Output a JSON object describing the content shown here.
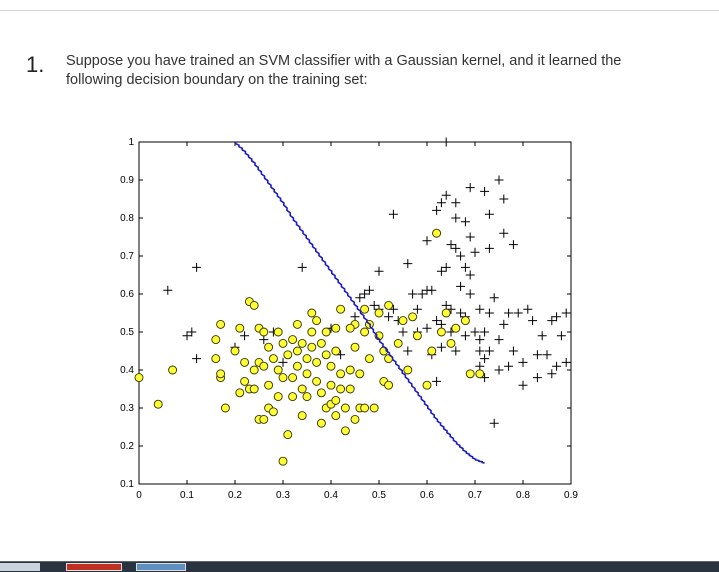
{
  "question": {
    "number": "1.",
    "line1": "Suppose you have trained an SVM classifier with a Gaussian kernel, and it learned the",
    "line2": "following decision boundary on the training set:"
  },
  "colors": {
    "boundary": "#1a1ac8",
    "positive_marker": "#000000",
    "negative_fill": "#ffff33",
    "negative_stroke": "#333300"
  },
  "chart_data": {
    "type": "scatter",
    "xlim": [
      0,
      0.9
    ],
    "ylim": [
      0.1,
      1
    ],
    "xticks": [
      "0",
      "0.1",
      "0.2",
      "0.3",
      "0.4",
      "0.5",
      "0.6",
      "0.7",
      "0.8",
      "0.9"
    ],
    "yticks": [
      "0.1",
      "0.2",
      "0.3",
      "0.4",
      "0.5",
      "0.6",
      "0.7",
      "0.8",
      "0.9",
      "1"
    ],
    "grid": false,
    "series": [
      {
        "marker": "plus",
        "points": [
          [
            0.06,
            0.61
          ],
          [
            0.1,
            0.49
          ],
          [
            0.11,
            0.5
          ],
          [
            0.12,
            0.43
          ],
          [
            0.12,
            0.67
          ],
          [
            0.2,
            0.46
          ],
          [
            0.22,
            0.49
          ],
          [
            0.26,
            0.48
          ],
          [
            0.28,
            0.5
          ],
          [
            0.3,
            0.42
          ],
          [
            0.34,
            0.67
          ],
          [
            0.4,
            0.51
          ],
          [
            0.42,
            0.44
          ],
          [
            0.44,
            0.4
          ],
          [
            0.45,
            0.54
          ],
          [
            0.46,
            0.59
          ],
          [
            0.47,
            0.6
          ],
          [
            0.48,
            0.61
          ],
          [
            0.49,
            0.57
          ],
          [
            0.5,
            0.56
          ],
          [
            0.5,
            0.66
          ],
          [
            0.52,
            0.54
          ],
          [
            0.53,
            0.81
          ],
          [
            0.53,
            0.56
          ],
          [
            0.54,
            0.53
          ],
          [
            0.55,
            0.5
          ],
          [
            0.56,
            0.45
          ],
          [
            0.56,
            0.68
          ],
          [
            0.57,
            0.6
          ],
          [
            0.58,
            0.56
          ],
          [
            0.58,
            0.5
          ],
          [
            0.59,
            0.6
          ],
          [
            0.6,
            0.61
          ],
          [
            0.6,
            0.51
          ],
          [
            0.6,
            0.74
          ],
          [
            0.61,
            0.44
          ],
          [
            0.61,
            0.61
          ],
          [
            0.62,
            0.53
          ],
          [
            0.62,
            0.76
          ],
          [
            0.62,
            0.82
          ],
          [
            0.63,
            0.84
          ],
          [
            0.63,
            0.66
          ],
          [
            0.63,
            0.46
          ],
          [
            0.63,
            0.52
          ],
          [
            0.64,
            0.86
          ],
          [
            0.64,
            0.57
          ],
          [
            0.64,
            0.67
          ],
          [
            0.64,
            1.0
          ],
          [
            0.65,
            0.73
          ],
          [
            0.65,
            0.5
          ],
          [
            0.65,
            0.56
          ],
          [
            0.66,
            0.84
          ],
          [
            0.66,
            0.8
          ],
          [
            0.66,
            0.72
          ],
          [
            0.66,
            0.45
          ],
          [
            0.67,
            0.7
          ],
          [
            0.67,
            0.62
          ],
          [
            0.67,
            0.55
          ],
          [
            0.68,
            0.79
          ],
          [
            0.68,
            0.67
          ],
          [
            0.68,
            0.54
          ],
          [
            0.68,
            0.49
          ],
          [
            0.69,
            0.88
          ],
          [
            0.69,
            0.75
          ],
          [
            0.69,
            0.65
          ],
          [
            0.69,
            0.6
          ],
          [
            0.7,
            0.71
          ],
          [
            0.7,
            0.5
          ],
          [
            0.71,
            0.56
          ],
          [
            0.71,
            0.45
          ],
          [
            0.71,
            0.41
          ],
          [
            0.72,
            0.87
          ],
          [
            0.72,
            0.5
          ],
          [
            0.72,
            0.43
          ],
          [
            0.73,
            0.81
          ],
          [
            0.73,
            0.72
          ],
          [
            0.73,
            0.45
          ],
          [
            0.73,
            0.55
          ],
          [
            0.74,
            0.26
          ],
          [
            0.74,
            0.59
          ],
          [
            0.75,
            0.9
          ],
          [
            0.75,
            0.48
          ],
          [
            0.75,
            0.4
          ],
          [
            0.76,
            0.85
          ],
          [
            0.76,
            0.76
          ],
          [
            0.76,
            0.52
          ],
          [
            0.77,
            0.41
          ],
          [
            0.77,
            0.55
          ],
          [
            0.78,
            0.73
          ],
          [
            0.78,
            0.45
          ],
          [
            0.79,
            0.55
          ],
          [
            0.8,
            0.36
          ],
          [
            0.8,
            0.42
          ],
          [
            0.81,
            0.56
          ],
          [
            0.82,
            0.53
          ],
          [
            0.83,
            0.44
          ],
          [
            0.83,
            0.38
          ],
          [
            0.84,
            0.49
          ],
          [
            0.85,
            0.44
          ],
          [
            0.86,
            0.53
          ],
          [
            0.86,
            0.39
          ],
          [
            0.87,
            0.54
          ],
          [
            0.87,
            0.41
          ],
          [
            0.88,
            0.49
          ],
          [
            0.89,
            0.42
          ],
          [
            0.89,
            0.55
          ],
          [
            0.72,
            0.38
          ],
          [
            0.71,
            0.48
          ],
          [
            0.62,
            0.37
          ]
        ]
      },
      {
        "marker": "circle",
        "points": [
          [
            0,
            0.38
          ],
          [
            0.04,
            0.31
          ],
          [
            0.07,
            0.4
          ],
          [
            0.16,
            0.48
          ],
          [
            0.16,
            0.43
          ],
          [
            0.17,
            0.52
          ],
          [
            0.17,
            0.38
          ],
          [
            0.17,
            0.39
          ],
          [
            0.18,
            0.3
          ],
          [
            0.2,
            0.45
          ],
          [
            0.21,
            0.51
          ],
          [
            0.21,
            0.34
          ],
          [
            0.22,
            0.42
          ],
          [
            0.22,
            0.37
          ],
          [
            0.23,
            0.58
          ],
          [
            0.23,
            0.35
          ],
          [
            0.24,
            0.57
          ],
          [
            0.24,
            0.4
          ],
          [
            0.24,
            0.35
          ],
          [
            0.25,
            0.51
          ],
          [
            0.25,
            0.42
          ],
          [
            0.25,
            0.27
          ],
          [
            0.26,
            0.5
          ],
          [
            0.26,
            0.41
          ],
          [
            0.26,
            0.27
          ],
          [
            0.27,
            0.46
          ],
          [
            0.27,
            0.36
          ],
          [
            0.27,
            0.3
          ],
          [
            0.28,
            0.43
          ],
          [
            0.28,
            0.29
          ],
          [
            0.29,
            0.5
          ],
          [
            0.29,
            0.4
          ],
          [
            0.29,
            0.33
          ],
          [
            0.3,
            0.47
          ],
          [
            0.3,
            0.38
          ],
          [
            0.3,
            0.16
          ],
          [
            0.31,
            0.44
          ],
          [
            0.31,
            0.23
          ],
          [
            0.32,
            0.48
          ],
          [
            0.32,
            0.38
          ],
          [
            0.32,
            0.33
          ],
          [
            0.33,
            0.52
          ],
          [
            0.33,
            0.45
          ],
          [
            0.33,
            0.41
          ],
          [
            0.34,
            0.47
          ],
          [
            0.34,
            0.35
          ],
          [
            0.34,
            0.28
          ],
          [
            0.35,
            0.43
          ],
          [
            0.35,
            0.39
          ],
          [
            0.35,
            0.33
          ],
          [
            0.36,
            0.55
          ],
          [
            0.36,
            0.5
          ],
          [
            0.36,
            0.46
          ],
          [
            0.37,
            0.42
          ],
          [
            0.37,
            0.37
          ],
          [
            0.37,
            0.53
          ],
          [
            0.38,
            0.47
          ],
          [
            0.38,
            0.34
          ],
          [
            0.38,
            0.26
          ],
          [
            0.39,
            0.44
          ],
          [
            0.39,
            0.3
          ],
          [
            0.39,
            0.5
          ],
          [
            0.4,
            0.41
          ],
          [
            0.4,
            0.36
          ],
          [
            0.4,
            0.31
          ],
          [
            0.41,
            0.45
          ],
          [
            0.41,
            0.51
          ],
          [
            0.41,
            0.28
          ],
          [
            0.42,
            0.56
          ],
          [
            0.42,
            0.35
          ],
          [
            0.42,
            0.39
          ],
          [
            0.43,
            0.3
          ],
          [
            0.43,
            0.24
          ],
          [
            0.44,
            0.4
          ],
          [
            0.44,
            0.35
          ],
          [
            0.45,
            0.46
          ],
          [
            0.45,
            0.52
          ],
          [
            0.45,
            0.27
          ],
          [
            0.46,
            0.39
          ],
          [
            0.46,
            0.3
          ],
          [
            0.47,
            0.56
          ],
          [
            0.47,
            0.5
          ],
          [
            0.47,
            0.3
          ],
          [
            0.48,
            0.52
          ],
          [
            0.48,
            0.43
          ],
          [
            0.49,
            0.3
          ],
          [
            0.5,
            0.55
          ],
          [
            0.5,
            0.49
          ],
          [
            0.51,
            0.45
          ],
          [
            0.51,
            0.37
          ],
          [
            0.52,
            0.57
          ],
          [
            0.52,
            0.43
          ],
          [
            0.52,
            0.36
          ],
          [
            0.54,
            0.47
          ],
          [
            0.55,
            0.53
          ],
          [
            0.56,
            0.4
          ],
          [
            0.57,
            0.54
          ],
          [
            0.58,
            0.49
          ],
          [
            0.6,
            0.36
          ],
          [
            0.61,
            0.45
          ],
          [
            0.63,
            0.5
          ],
          [
            0.64,
            0.55
          ],
          [
            0.65,
            0.47
          ],
          [
            0.66,
            0.51
          ],
          [
            0.68,
            0.53
          ],
          [
            0.62,
            0.76
          ],
          [
            0.69,
            0.39
          ],
          [
            0.71,
            0.39
          ],
          [
            0.41,
            0.32
          ],
          [
            0.44,
            0.51
          ]
        ]
      }
    ],
    "boundary": [
      [
        0.2,
        1.0
      ],
      [
        0.22,
        0.975
      ],
      [
        0.24,
        0.945
      ],
      [
        0.26,
        0.91
      ],
      [
        0.28,
        0.875
      ],
      [
        0.3,
        0.84
      ],
      [
        0.32,
        0.8
      ],
      [
        0.34,
        0.765
      ],
      [
        0.36,
        0.73
      ],
      [
        0.38,
        0.695
      ],
      [
        0.4,
        0.66
      ],
      [
        0.42,
        0.625
      ],
      [
        0.44,
        0.59
      ],
      [
        0.46,
        0.555
      ],
      [
        0.48,
        0.52
      ],
      [
        0.5,
        0.48
      ],
      [
        0.52,
        0.445
      ],
      [
        0.54,
        0.41
      ],
      [
        0.56,
        0.375
      ],
      [
        0.58,
        0.34
      ],
      [
        0.6,
        0.305
      ],
      [
        0.62,
        0.27
      ],
      [
        0.64,
        0.24
      ],
      [
        0.66,
        0.21
      ],
      [
        0.68,
        0.185
      ],
      [
        0.7,
        0.165
      ],
      [
        0.72,
        0.155
      ]
    ]
  }
}
